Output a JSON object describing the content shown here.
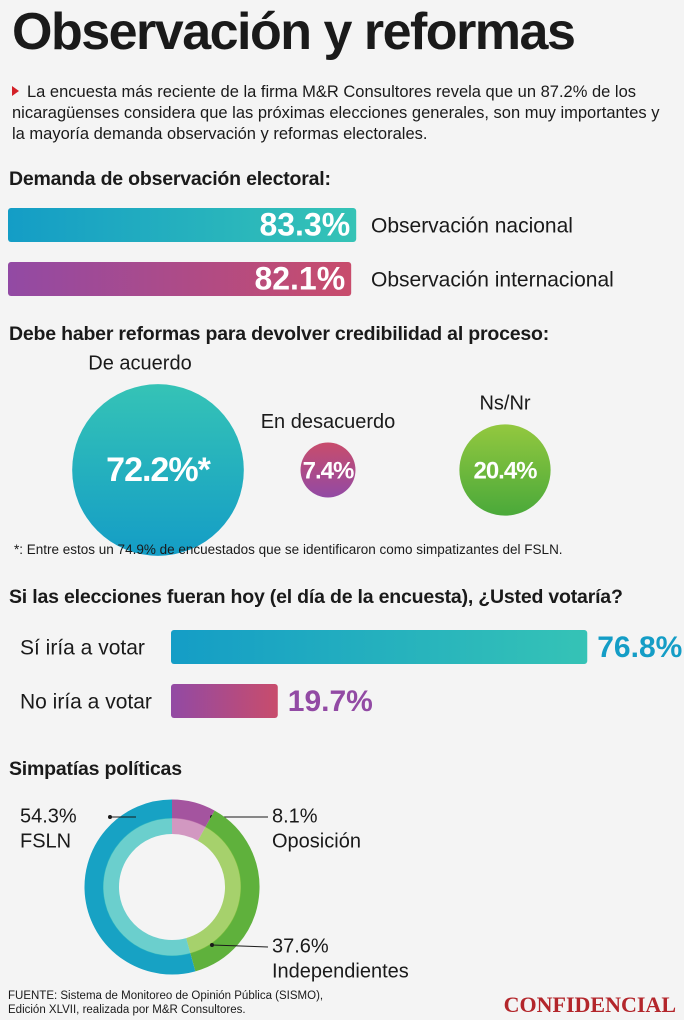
{
  "title": "Observación y reformas",
  "intro": "La encuesta más reciente de la firma M&R Consultores revela que un 87.2% de los nicaragüenses considera que las próximas elecciones generales, son muy importantes y la mayoría demanda observación y reformas electorales.",
  "chart_data": [
    {
      "type": "bar",
      "title": "Demanda de observación electoral:",
      "categories": [
        "Observación nacional",
        "Observación internacional"
      ],
      "values": [
        83.3,
        82.1
      ],
      "value_labels": [
        "83.3%",
        "82.1%"
      ],
      "colors": [
        [
          "#149dc6",
          "#35c3b6"
        ],
        [
          "#924aa4",
          "#c84c6c"
        ]
      ]
    },
    {
      "type": "bubble",
      "title": "Debe haber reformas para devolver credibilidad al proceso:",
      "categories": [
        "De acuerdo",
        "En desacuerdo",
        "Ns/Nr"
      ],
      "values": [
        72.2,
        7.4,
        20.4
      ],
      "value_labels": [
        "72.2%*",
        "7.4%",
        "20.4%"
      ],
      "colors": [
        [
          "#149dc6",
          "#35c3b6"
        ],
        [
          "#924aa4",
          "#c84c6c"
        ],
        [
          "#4aa93a",
          "#93c83f"
        ]
      ],
      "footnote": "*: Entre estos un 74.9% de encuestados que se identificaron como simpatizantes del FSLN."
    },
    {
      "type": "bar",
      "title": "Si las elecciones fueran hoy (el día de la encuesta), ¿Usted votaría?",
      "categories": [
        "Sí iría a votar",
        "No iría a votar"
      ],
      "values": [
        76.8,
        19.7
      ],
      "value_labels": [
        "76.8%",
        "19.7%"
      ],
      "colors": [
        [
          "#149dc6",
          "#35c3b6"
        ],
        [
          "#924aa4",
          "#c84c6c"
        ]
      ]
    },
    {
      "type": "donut",
      "title": "Simpatías políticas",
      "categories": [
        "Oposición",
        "Independientes",
        "FSLN"
      ],
      "values": [
        8.1,
        37.6,
        54.3
      ],
      "value_labels": [
        "8.1%",
        "37.6%",
        "54.3%"
      ],
      "colors": [
        [
          "#a4549f",
          "#c77ab0"
        ],
        [
          "#5fb13c",
          "#8cc63f"
        ],
        [
          "#17a2c4",
          "#3ec3c0"
        ]
      ]
    }
  ],
  "source": [
    "FUENTE: Sistema de Monitoreo de Opinión Pública (SISMO),",
    "Edición XLVII, realizada por M&R Consultores."
  ],
  "brand": "CONFIDENCIAL"
}
